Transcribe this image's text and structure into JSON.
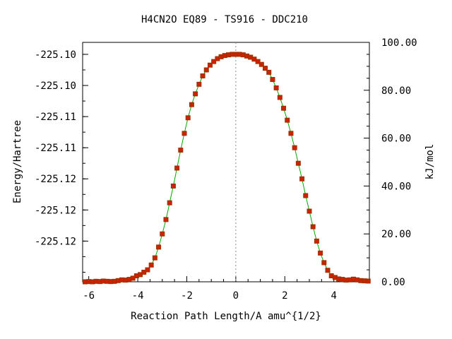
{
  "chart_data": {
    "type": "line",
    "title": "H4CN2O   EQ89 - TS916 - DDC210",
    "xlabel": "Reaction Path Length/A amu^{1/2}",
    "ylabel_left": "Energy/Hartree",
    "ylabel_right": "kJ/mol",
    "xlim": [
      -6.25,
      5.45
    ],
    "right_ylim": [
      0.0,
      100.0
    ],
    "x_ticks": [
      -6,
      -4,
      -2,
      0,
      2,
      4
    ],
    "x_tick_labels": [
      "-6",
      "-4",
      "-2",
      "0",
      "2",
      "4"
    ],
    "left_y_tick_values": [
      95.0,
      82.0,
      69.0,
      56.0,
      43.0,
      30.0,
      17.0
    ],
    "left_y_tick_labels": [
      "-225.10",
      "-225.10",
      "-225.11",
      "-225.11",
      "-225.12",
      "-225.12",
      "-225.12"
    ],
    "right_y_ticks": [
      0,
      20,
      40,
      60,
      80,
      100
    ],
    "right_y_tick_labels": [
      "0.00",
      "20.00",
      "40.00",
      "60.00",
      "80.00",
      "100.00"
    ],
    "ts_marker_x": 0.0,
    "grid": false,
    "line_color": "#00aa00",
    "marker_color": "#cc2200",
    "marker_edge_color": "#993300",
    "series": [
      {
        "x": [
          -6.15,
          -6.0,
          -5.85,
          -5.7,
          -5.55,
          -5.4,
          -5.25,
          -5.1,
          -4.95,
          -4.8,
          -4.65,
          -4.5,
          -4.35,
          -4.2,
          -4.05,
          -3.9,
          -3.75,
          -3.6,
          -3.45,
          -3.3,
          -3.15,
          -3.0,
          -2.85,
          -2.7,
          -2.55,
          -2.4,
          -2.25,
          -2.1,
          -1.95,
          -1.8,
          -1.65,
          -1.5,
          -1.35,
          -1.2,
          -1.05,
          -0.9,
          -0.75,
          -0.6,
          -0.45,
          -0.3,
          -0.15,
          0.0,
          0.15,
          0.3,
          0.45,
          0.6,
          0.75,
          0.9,
          1.05,
          1.2,
          1.35,
          1.5,
          1.65,
          1.8,
          1.95,
          2.1,
          2.25,
          2.4,
          2.55,
          2.7,
          2.85,
          3.0,
          3.15,
          3.3,
          3.45,
          3.6,
          3.75,
          3.9,
          4.05,
          4.2,
          4.35,
          4.5,
          4.65,
          4.8,
          4.95,
          5.1,
          5.25,
          5.4
        ],
        "y": [
          0.0,
          0.1,
          0.0,
          0.2,
          0.1,
          0.3,
          0.2,
          0.1,
          0.2,
          0.5,
          0.8,
          0.7,
          1.0,
          1.5,
          2.5,
          3.0,
          4.0,
          5.0,
          7.0,
          10.0,
          14.5,
          20.0,
          26.0,
          33.0,
          40.0,
          47.5,
          55.0,
          62.0,
          68.5,
          74.0,
          78.5,
          82.5,
          86.0,
          88.5,
          90.5,
          92.0,
          93.2,
          94.0,
          94.5,
          94.8,
          95.0,
          95.0,
          95.0,
          94.8,
          94.3,
          93.8,
          93.0,
          92.0,
          90.8,
          89.2,
          87.5,
          84.5,
          81.0,
          77.0,
          72.5,
          67.5,
          62.0,
          56.0,
          49.5,
          43.0,
          36.0,
          29.5,
          23.0,
          17.0,
          12.0,
          8.0,
          4.8,
          2.5,
          1.8,
          1.2,
          1.0,
          0.7,
          0.8,
          1.1,
          0.8,
          0.5,
          0.4,
          0.3
        ]
      }
    ]
  }
}
